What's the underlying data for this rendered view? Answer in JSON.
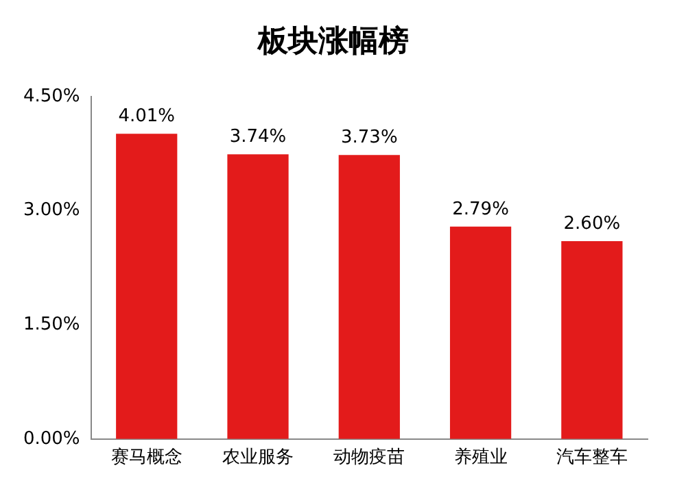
{
  "chart_data": {
    "type": "bar",
    "title": "板块涨幅榜",
    "categories": [
      "赛马概念",
      "农业服务",
      "动物疫苗",
      "养殖业",
      "汽车整车"
    ],
    "values": [
      4.01,
      3.74,
      3.73,
      2.79,
      2.6
    ],
    "value_labels": [
      "4.01%",
      "3.74%",
      "3.73%",
      "2.79%",
      "2.60%"
    ],
    "color": "#e31b1b",
    "ylim": [
      0,
      4.5
    ],
    "yticks": [
      {
        "value": 0,
        "label": "0.00%"
      },
      {
        "value": 1.5,
        "label": "1.50%"
      },
      {
        "value": 3,
        "label": "3.00%"
      },
      {
        "value": 4.5,
        "label": "4.50%"
      }
    ],
    "grid": false,
    "legend": false
  }
}
